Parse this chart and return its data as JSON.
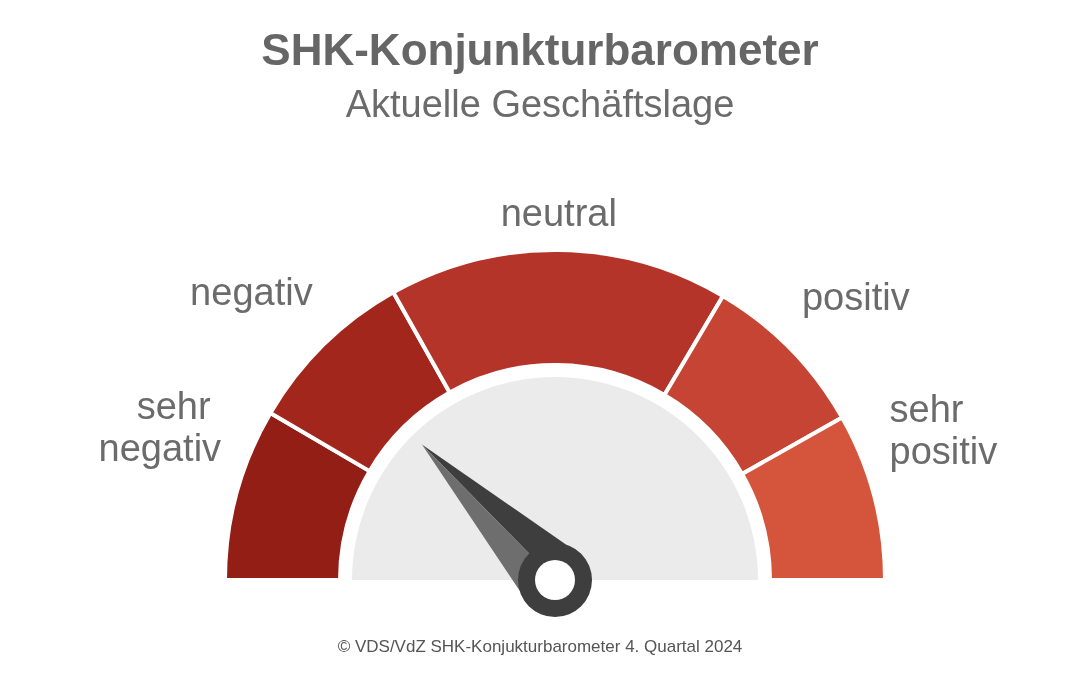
{
  "chart_data": {
    "type": "donut",
    "title": "SHK-Konjunkturbarometer",
    "subtitle": "Aktuelle Geschäftslage",
    "categories": [
      "sehr negativ",
      "negativ",
      "neutral",
      "positiv",
      "sehr positiv"
    ],
    "values": [
      16.9,
      16.8,
      33.3,
      16.6,
      16.4
    ],
    "colors": [
      "#931e16",
      "#a2261c",
      "#b5342a",
      "#c64433",
      "#d4553b"
    ],
    "needle": "negativ",
    "annotations": [
      "© VDS/VdZ SHK-Konjukturbarometer 4. Quartal 2024"
    ]
  }
}
